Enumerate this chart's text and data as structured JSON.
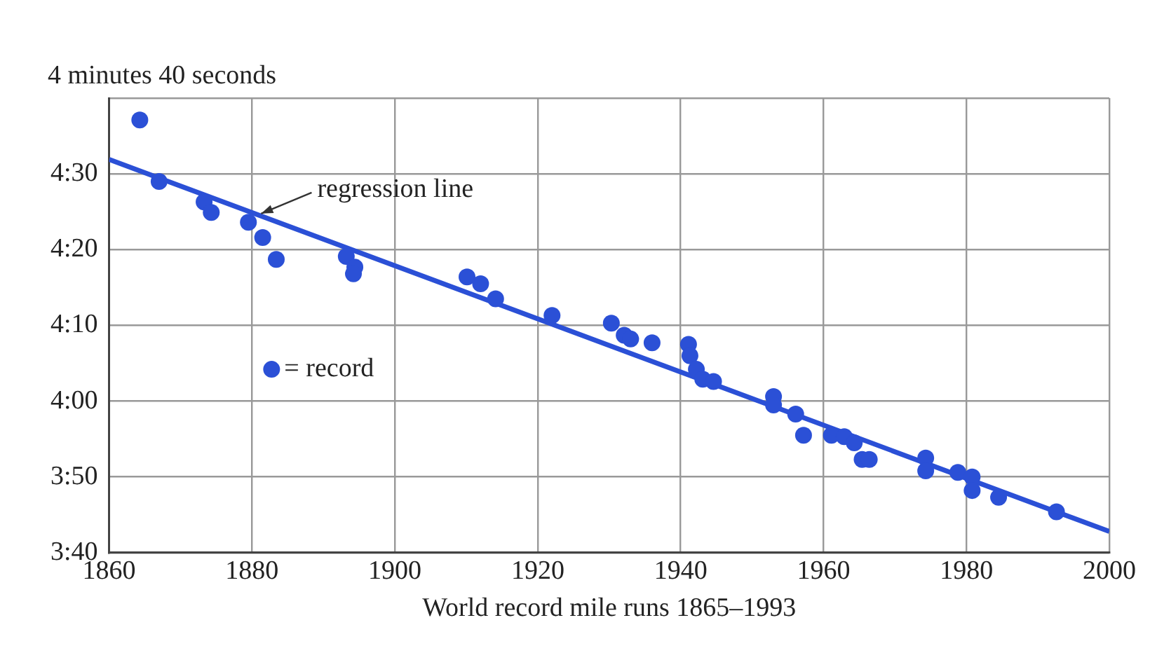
{
  "chart_data": {
    "type": "scatter",
    "ylabel": "4 minutes 40 seconds",
    "xlabel": "World record mile runs 1865–1993",
    "xlim": [
      1860,
      2000
    ],
    "xticks": [
      1860,
      1880,
      1900,
      1920,
      1940,
      1960,
      1980,
      2000
    ],
    "ylim": [
      220,
      280
    ],
    "yticks": [
      {
        "value": 220,
        "label": "3:40"
      },
      {
        "value": 230,
        "label": "3:50"
      },
      {
        "value": 240,
        "label": "4:00"
      },
      {
        "value": 250,
        "label": "4:10"
      },
      {
        "value": 260,
        "label": "4:20"
      },
      {
        "value": 270,
        "label": "4:30"
      },
      {
        "value": 280,
        "label": null
      }
    ],
    "grid": true,
    "legend": "center left",
    "marker": "circle",
    "annotations": [
      {
        "text": "regression line",
        "x": 1880.5,
        "y": 264.2
      }
    ],
    "series": [
      {
        "name": "= record",
        "color": "#2b50d6",
        "x": [
          1864.3,
          1867,
          1873.3,
          1874.3,
          1879.5,
          1881.5,
          1883.4,
          1893.2,
          1894.4,
          1894.2,
          1910.1,
          1912,
          1914.1,
          1922,
          1930.3,
          1932.1,
          1933,
          1936,
          1941.1,
          1941.3,
          1942.2,
          1943.1,
          1944.6,
          1953,
          1953,
          1956.1,
          1957.2,
          1961.1,
          1962.9,
          1964.3,
          1965.4,
          1966.4,
          1974.3,
          1974.3,
          1978.8,
          1980.8,
          1980.8,
          1984.5,
          1992.6
        ],
        "values": [
          277.1,
          269,
          266.3,
          264.9,
          263.6,
          261.6,
          258.7,
          259.1,
          257.7,
          256.8,
          256.4,
          255.5,
          253.5,
          251.3,
          250.3,
          248.7,
          248.2,
          247.7,
          247.5,
          246,
          244.2,
          242.9,
          242.6,
          240.6,
          239.5,
          238.3,
          235.5,
          235.5,
          235.3,
          234.5,
          232.3,
          232.3,
          232.5,
          230.8,
          230.6,
          230,
          228.2,
          227.3,
          225.4
        ]
      },
      {
        "type": "line",
        "color": "#2b50d6",
        "x": [
          1860,
          2000
        ],
        "values": [
          271.9,
          222.8
        ],
        "marker": "none",
        "line_style": "solid"
      }
    ]
  }
}
